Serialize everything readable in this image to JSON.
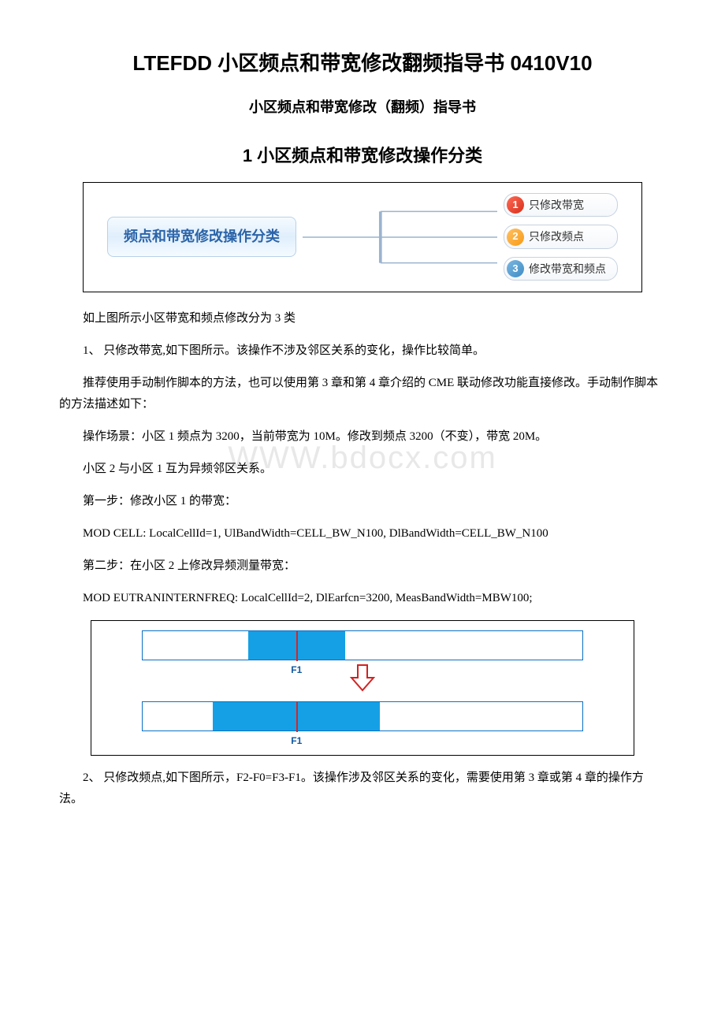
{
  "doc": {
    "title_main": "LTEFDD 小区频点和带宽修改翻频指导书 0410V10",
    "title_sub": "小区频点和带宽修改（翻频）指导书",
    "section1_heading": "1 小区频点和带宽修改操作分类"
  },
  "diagram1": {
    "left_label": "频点和带宽修改操作分类",
    "items": [
      {
        "num": "1",
        "text": "只修改带宽"
      },
      {
        "num": "2",
        "text": "只修改频点"
      },
      {
        "num": "3",
        "text": "修改带宽和频点"
      }
    ],
    "colors": {
      "left_bg_top": "#f5fbff",
      "left_bg_bottom": "#e0eefc",
      "left_border": "#b8d1ea",
      "left_text": "#2b64a8",
      "item_border": "#c7d2e0",
      "num_colors": [
        "#d72f1a",
        "#f79a14",
        "#3e8cc5"
      ],
      "connector": "#9ab3cf"
    }
  },
  "paragraphs": {
    "p1": "如上图所示小区带宽和频点修改分为 3 类",
    "p2": "1、 只修改带宽,如下图所示。该操作不涉及邻区关系的变化，操作比较简单。",
    "p3": "推荐使用手动制作脚本的方法，也可以使用第 3 章和第 4 章介绍的 CME 联动修改功能直接修改。手动制作脚本的方法描述如下：",
    "p4": "操作场景：小区 1 频点为 3200，当前带宽为 10M。修改到频点 3200（不变），带宽 20M。",
    "p5": "小区 2 与小区 1 互为异频邻区关系。",
    "p6": "第一步：修改小区 1 的带宽：",
    "p7": "MOD CELL: LocalCellId=1, UlBandWidth=CELL_BW_N100, DlBandWidth=CELL_BW_N100",
    "p8": "第二步：在小区 2 上修改异频测量带宽：",
    "p9": "MOD EUTRANINTERNFREQ: LocalCellId=2, DlEarfcn=3200, MeasBandWidth=MBW100;",
    "p10": "2、 只修改频点,如下图所示，F2-F0=F3-F1。该操作涉及邻区关系的变化，需要使用第 3 章或第 4 章的操作方法。"
  },
  "watermark": "WWW.bdocx.com",
  "diagram2": {
    "before": {
      "fill_left_pct": 24,
      "fill_width_pct": 22,
      "tick_pct": 35,
      "label": "F1"
    },
    "after": {
      "fill_left_pct": 16,
      "fill_width_pct": 38,
      "tick_pct": 35,
      "label": "F1"
    },
    "colors": {
      "border": "#0b70c4",
      "fill": "#15a0e6",
      "tick": "#dd2222",
      "label": "#1159a0",
      "arrow_fill": "#ffffff",
      "arrow_stroke": "#d22222"
    },
    "arrow": {
      "width": 34,
      "height": 36
    }
  }
}
